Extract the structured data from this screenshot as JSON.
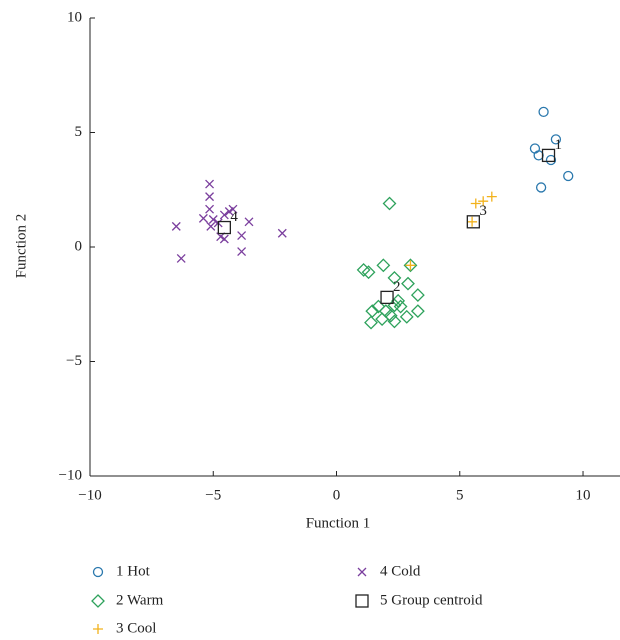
{
  "chart_data": {
    "type": "scatter",
    "x_label": "Function 1",
    "y_label": "Function 2",
    "xlim": [
      -10,
      11.5
    ],
    "ylim": [
      -10,
      10
    ],
    "xticks": [
      {
        "value": -10,
        "label": "−10"
      },
      {
        "value": -5,
        "label": "−5"
      },
      0,
      5,
      10
    ],
    "yticks": [
      {
        "value": -10,
        "label": "−10"
      },
      {
        "value": -5,
        "label": "−5"
      },
      0,
      5,
      10
    ],
    "series": [
      {
        "name": "1 Hot",
        "color": "#2a78ad",
        "marker": "circle",
        "x": [
          8.4,
          8.9,
          8.05,
          8.2,
          8.7,
          9.4,
          8.3
        ],
        "values": [
          5.9,
          4.7,
          4.3,
          4.0,
          3.8,
          3.1,
          2.6
        ]
      },
      {
        "name": "2 Warm",
        "color": "#2ea25c",
        "marker": "diamond",
        "x": [
          2.15,
          1.1,
          1.3,
          1.9,
          2.35,
          3.0,
          2.9,
          3.3,
          1.45,
          1.7,
          2.0,
          2.35,
          2.5,
          2.6,
          2.2,
          1.85,
          1.4,
          2.35,
          2.85,
          3.3
        ],
        "values": [
          1.9,
          -1.0,
          -1.1,
          -0.8,
          -1.35,
          -0.8,
          -1.6,
          -2.1,
          -2.8,
          -2.6,
          -2.8,
          -2.55,
          -2.35,
          -2.6,
          -3.0,
          -3.15,
          -3.3,
          -3.25,
          -3.05,
          -2.8
        ]
      },
      {
        "name": "3 Cool",
        "color": "#f2b21c",
        "marker": "plus",
        "x": [
          3.0,
          5.65,
          5.95,
          6.3,
          5.5
        ],
        "values": [
          -0.8,
          1.9,
          2.0,
          2.2,
          1.1
        ]
      },
      {
        "name": "4 Cold",
        "color": "#7b3f9e",
        "marker": "cross",
        "x": [
          -5.15,
          -5.15,
          -5.15,
          -5.4,
          -5.0,
          -4.8,
          -5.1,
          -4.55,
          -4.35,
          -4.2,
          -3.55,
          -3.85,
          -3.85,
          -6.5,
          -6.3,
          -2.2,
          -4.7,
          -4.55
        ],
        "values": [
          2.75,
          2.2,
          1.65,
          1.25,
          1.2,
          1.05,
          0.9,
          1.4,
          1.55,
          1.65,
          1.1,
          0.5,
          -0.2,
          0.9,
          -0.5,
          0.6,
          0.45,
          0.35
        ]
      },
      {
        "name": "5 Group centroid",
        "color": "#222222",
        "marker": "square",
        "x": [
          8.6,
          2.05,
          5.55,
          -4.55
        ],
        "values": [
          4.0,
          -2.2,
          1.1,
          0.85
        ],
        "point_labels": [
          "1",
          "2",
          "3",
          "4"
        ]
      }
    ]
  }
}
